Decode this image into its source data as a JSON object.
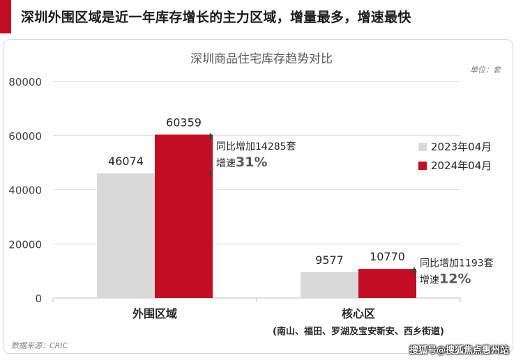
{
  "header": {
    "title": "深圳外围区域是近一年库存增长的主力区域，增量最多，增速最快"
  },
  "chart_data": {
    "type": "bar",
    "title": "深圳商品住宅库存趋势对比",
    "unit_label": "单位：套",
    "categories": [
      "外围区域",
      "核心区"
    ],
    "category_subtitles": [
      "",
      "(南山、福田、罗湖及宝安新安、西乡街道)"
    ],
    "series": [
      {
        "name": "2023年04月",
        "values": [
          46074,
          9577
        ],
        "color": "#d9d9d9"
      },
      {
        "name": "2024年04月",
        "values": [
          60359,
          10770
        ],
        "color": "#c30d23"
      }
    ],
    "value_labels": [
      [
        "46074",
        "9577"
      ],
      [
        "60359",
        "10770"
      ]
    ],
    "ylim": [
      0,
      80000
    ],
    "yticks": [
      "0",
      "20000",
      "40000",
      "60000",
      "80000"
    ],
    "annotations": [
      {
        "line1": "同比增加14285套",
        "line2_prefix": "增速",
        "line2_value": "31%"
      },
      {
        "line1": "同比增加1193套",
        "line2_prefix": "增速",
        "line2_value": "12%"
      }
    ],
    "legend_position": "right",
    "grid": true
  },
  "footer": {
    "source": "数据来源：CRIC",
    "watermark": "搜狐号@搜狐焦点惠州站"
  }
}
